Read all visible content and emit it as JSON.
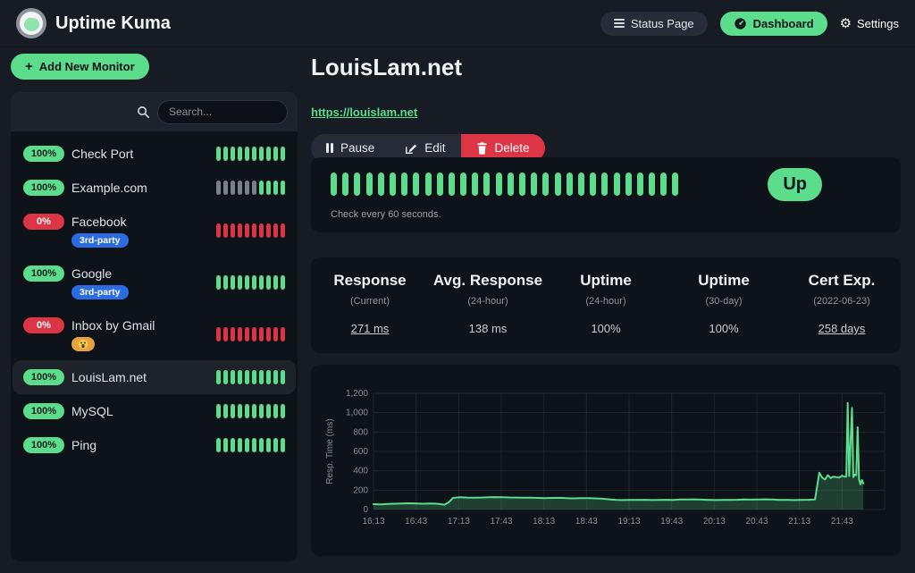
{
  "app": {
    "title": "Uptime Kuma"
  },
  "header": {
    "status_page_label": "Status Page",
    "dashboard_label": "Dashboard",
    "settings_label": "Settings"
  },
  "sidebar": {
    "add_monitor_label": "Add New Monitor",
    "search_placeholder": "Search...",
    "monitors": [
      {
        "name": "Check Port",
        "uptime": "100%",
        "status": "up",
        "selected": false,
        "tags": [],
        "beats": "UUUUUUUUUU"
      },
      {
        "name": "Example.com",
        "uptime": "100%",
        "status": "up",
        "selected": false,
        "tags": [],
        "beats": "EEEEEEUUUU"
      },
      {
        "name": "Facebook",
        "uptime": "0%",
        "status": "down",
        "selected": false,
        "tags": [
          {
            "label": "3rd-party",
            "color": "#2c6ce3",
            "icon": ""
          }
        ],
        "beats": "DDDDDDDDDD"
      },
      {
        "name": "Google",
        "uptime": "100%",
        "status": "up",
        "selected": false,
        "tags": [
          {
            "label": "3rd-party",
            "color": "#2c6ce3",
            "icon": ""
          }
        ],
        "beats": "UUUUUUUUUU"
      },
      {
        "name": "Inbox by Gmail",
        "uptime": "0%",
        "status": "down",
        "selected": false,
        "tags": [
          {
            "label": "",
            "color": "#e8a33d",
            "icon": "scream-emoji-icon"
          }
        ],
        "beats": "DDDDDDDDDD"
      },
      {
        "name": "LouisLam.net",
        "uptime": "100%",
        "status": "up",
        "selected": true,
        "tags": [],
        "beats": "UUUUUUUUUU"
      },
      {
        "name": "MySQL",
        "uptime": "100%",
        "status": "up",
        "selected": false,
        "tags": [],
        "beats": "UUUUUUUUUU"
      },
      {
        "name": "Ping",
        "uptime": "100%",
        "status": "up",
        "selected": false,
        "tags": [],
        "beats": "UUUUUUUUUU"
      }
    ]
  },
  "monitor": {
    "title": "LouisLam.net",
    "url": "https://louislam.net",
    "actions": {
      "pause": "Pause",
      "edit": "Edit",
      "delete": "Delete"
    },
    "heartbeat": {
      "beats": "UUUUUUUUUUUUUUUUUUUUUUUUUUUUUU",
      "check_interval_text": "Check every 60 seconds.",
      "up_label": "Up"
    },
    "stats": [
      {
        "label": "Response",
        "sub": "(Current)",
        "value": "271 ms",
        "underline": true
      },
      {
        "label": "Avg. Response",
        "sub": "(24-hour)",
        "value": "138 ms",
        "underline": false
      },
      {
        "label": "Uptime",
        "sub": "(24-hour)",
        "value": "100%",
        "underline": false
      },
      {
        "label": "Uptime",
        "sub": "(30-day)",
        "value": "100%",
        "underline": false
      },
      {
        "label": "Cert Exp.",
        "sub": "(2022-06-23)",
        "value": "258 days",
        "underline": true
      }
    ]
  },
  "colors": {
    "accent_green": "#5cdd8b",
    "danger_red": "#dc3545",
    "beat_empty_gray": "#7a8087",
    "tag_blue": "#2c6ce3",
    "tag_orange": "#e8a33d",
    "panel_bg": "#0e1219",
    "page_bg": "#161b24"
  },
  "chart_data": {
    "type": "area",
    "title": "",
    "xlabel": "",
    "ylabel": "Resp. Time (ms)",
    "ylim": [
      0,
      1200
    ],
    "yticks": [
      0,
      200,
      400,
      600,
      800,
      1000,
      1200
    ],
    "ytick_labels": [
      "0",
      "200",
      "400",
      "600",
      "800",
      "1,000",
      "1,200"
    ],
    "x_domain": [
      "16:13",
      "22:13"
    ],
    "x_tick_interval_minutes": 30,
    "xtick_labels": [
      "16:13",
      "16:43",
      "17:13",
      "17:43",
      "18:13",
      "18:43",
      "19:13",
      "19:43",
      "20:13",
      "20:43",
      "21:13",
      "21:43"
    ],
    "grid": true,
    "legend": false,
    "line_color": "#5cdd8b",
    "fill_color": "rgba(92,221,139,0.22)",
    "points": [
      [
        "16:13",
        55
      ],
      [
        "16:18",
        54
      ],
      [
        "16:23",
        57
      ],
      [
        "16:28",
        60
      ],
      [
        "16:33",
        62
      ],
      [
        "16:38",
        65
      ],
      [
        "16:43",
        63
      ],
      [
        "16:48",
        60
      ],
      [
        "16:53",
        62
      ],
      [
        "16:58",
        60
      ],
      [
        "17:03",
        50
      ],
      [
        "17:06",
        75
      ],
      [
        "17:09",
        120
      ],
      [
        "17:14",
        127
      ],
      [
        "17:19",
        124
      ],
      [
        "17:24",
        122
      ],
      [
        "17:29",
        124
      ],
      [
        "17:34",
        126
      ],
      [
        "17:39",
        128
      ],
      [
        "17:44",
        127
      ],
      [
        "17:49",
        125
      ],
      [
        "17:54",
        124
      ],
      [
        "17:59",
        122
      ],
      [
        "18:04",
        123
      ],
      [
        "18:09",
        120
      ],
      [
        "18:14",
        118
      ],
      [
        "18:19",
        120
      ],
      [
        "18:24",
        121
      ],
      [
        "18:29",
        117
      ],
      [
        "18:34",
        115
      ],
      [
        "18:39",
        117
      ],
      [
        "18:44",
        118
      ],
      [
        "18:49",
        115
      ],
      [
        "18:54",
        112
      ],
      [
        "18:59",
        105
      ],
      [
        "19:04",
        100
      ],
      [
        "19:09",
        98
      ],
      [
        "19:14",
        100
      ],
      [
        "19:19",
        99
      ],
      [
        "19:24",
        101
      ],
      [
        "19:29",
        98
      ],
      [
        "19:34",
        100
      ],
      [
        "19:39",
        101
      ],
      [
        "19:44",
        100
      ],
      [
        "19:49",
        103
      ],
      [
        "19:54",
        104
      ],
      [
        "19:59",
        105
      ],
      [
        "20:04",
        102
      ],
      [
        "20:09",
        100
      ],
      [
        "20:14",
        98
      ],
      [
        "20:19",
        99
      ],
      [
        "20:24",
        100
      ],
      [
        "20:29",
        101
      ],
      [
        "20:34",
        103
      ],
      [
        "20:39",
        102
      ],
      [
        "20:44",
        104
      ],
      [
        "20:49",
        105
      ],
      [
        "20:54",
        103
      ],
      [
        "20:59",
        100
      ],
      [
        "21:04",
        99
      ],
      [
        "21:09",
        98
      ],
      [
        "21:14",
        100
      ],
      [
        "21:19",
        101
      ],
      [
        "21:24",
        103
      ],
      [
        "21:27",
        380
      ],
      [
        "21:29",
        330
      ],
      [
        "21:31",
        310
      ],
      [
        "21:33",
        355
      ],
      [
        "21:35",
        325
      ],
      [
        "21:37",
        340
      ],
      [
        "21:39",
        335
      ],
      [
        "21:41",
        330
      ],
      [
        "21:43",
        350
      ],
      [
        "21:45",
        338
      ],
      [
        "21:46",
        342
      ],
      [
        "21:47",
        1100
      ],
      [
        "21:48",
        345
      ],
      [
        "21:50",
        1050
      ],
      [
        "21:51",
        335
      ],
      [
        "21:52",
        360
      ],
      [
        "21:53",
        355
      ],
      [
        "21:54",
        850
      ],
      [
        "21:55",
        310
      ],
      [
        "21:56",
        260
      ],
      [
        "21:57",
        305
      ],
      [
        "21:58",
        270
      ]
    ]
  }
}
